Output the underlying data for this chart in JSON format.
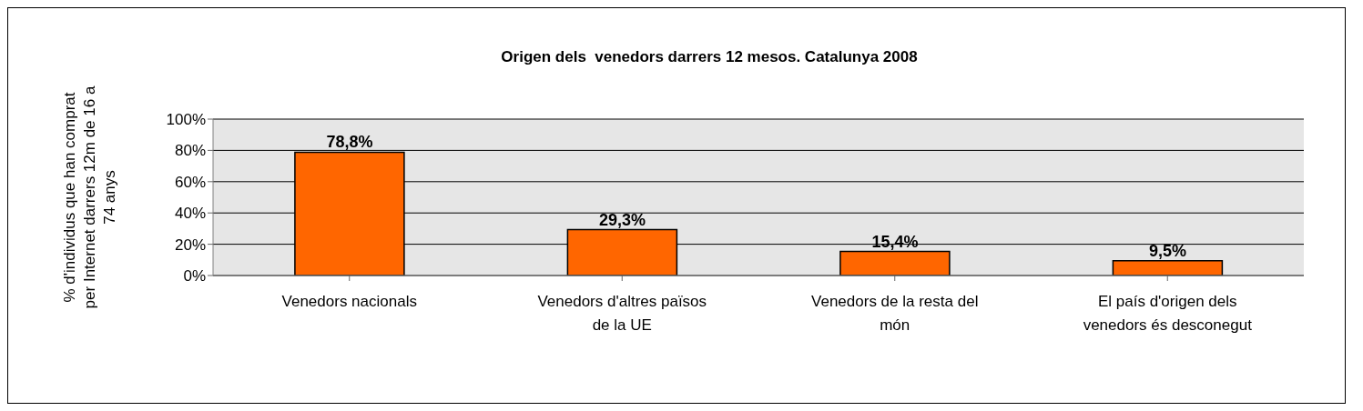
{
  "chart_data": {
    "type": "bar",
    "title": "Origen dels  venedors darrers 12 mesos. Catalunya 2008",
    "ylabel": "% d'individus que han comprat per Internet darrers 12m de 16 a 74 anys",
    "categories": [
      "Venedors nacionals",
      "Venedors d'altres països de la UE",
      "Venedors de la resta del món",
      "El país d'origen dels venedors és desconegut"
    ],
    "values": [
      78.8,
      29.3,
      15.4,
      9.5
    ],
    "color": "#ff6600",
    "value_labels": [
      "78,8%",
      "29,3%",
      "15,4%",
      "9,5%"
    ],
    "ylim": [
      0,
      100
    ],
    "yticks": [
      {
        "value": 0,
        "label": "0%"
      },
      {
        "value": 20,
        "label": "20%"
      },
      {
        "value": 40,
        "label": "40%"
      },
      {
        "value": 60,
        "label": "60%"
      },
      {
        "value": 80,
        "label": "80%"
      },
      {
        "value": 100,
        "label": "100%"
      }
    ],
    "grid": "y",
    "legend": false
  }
}
